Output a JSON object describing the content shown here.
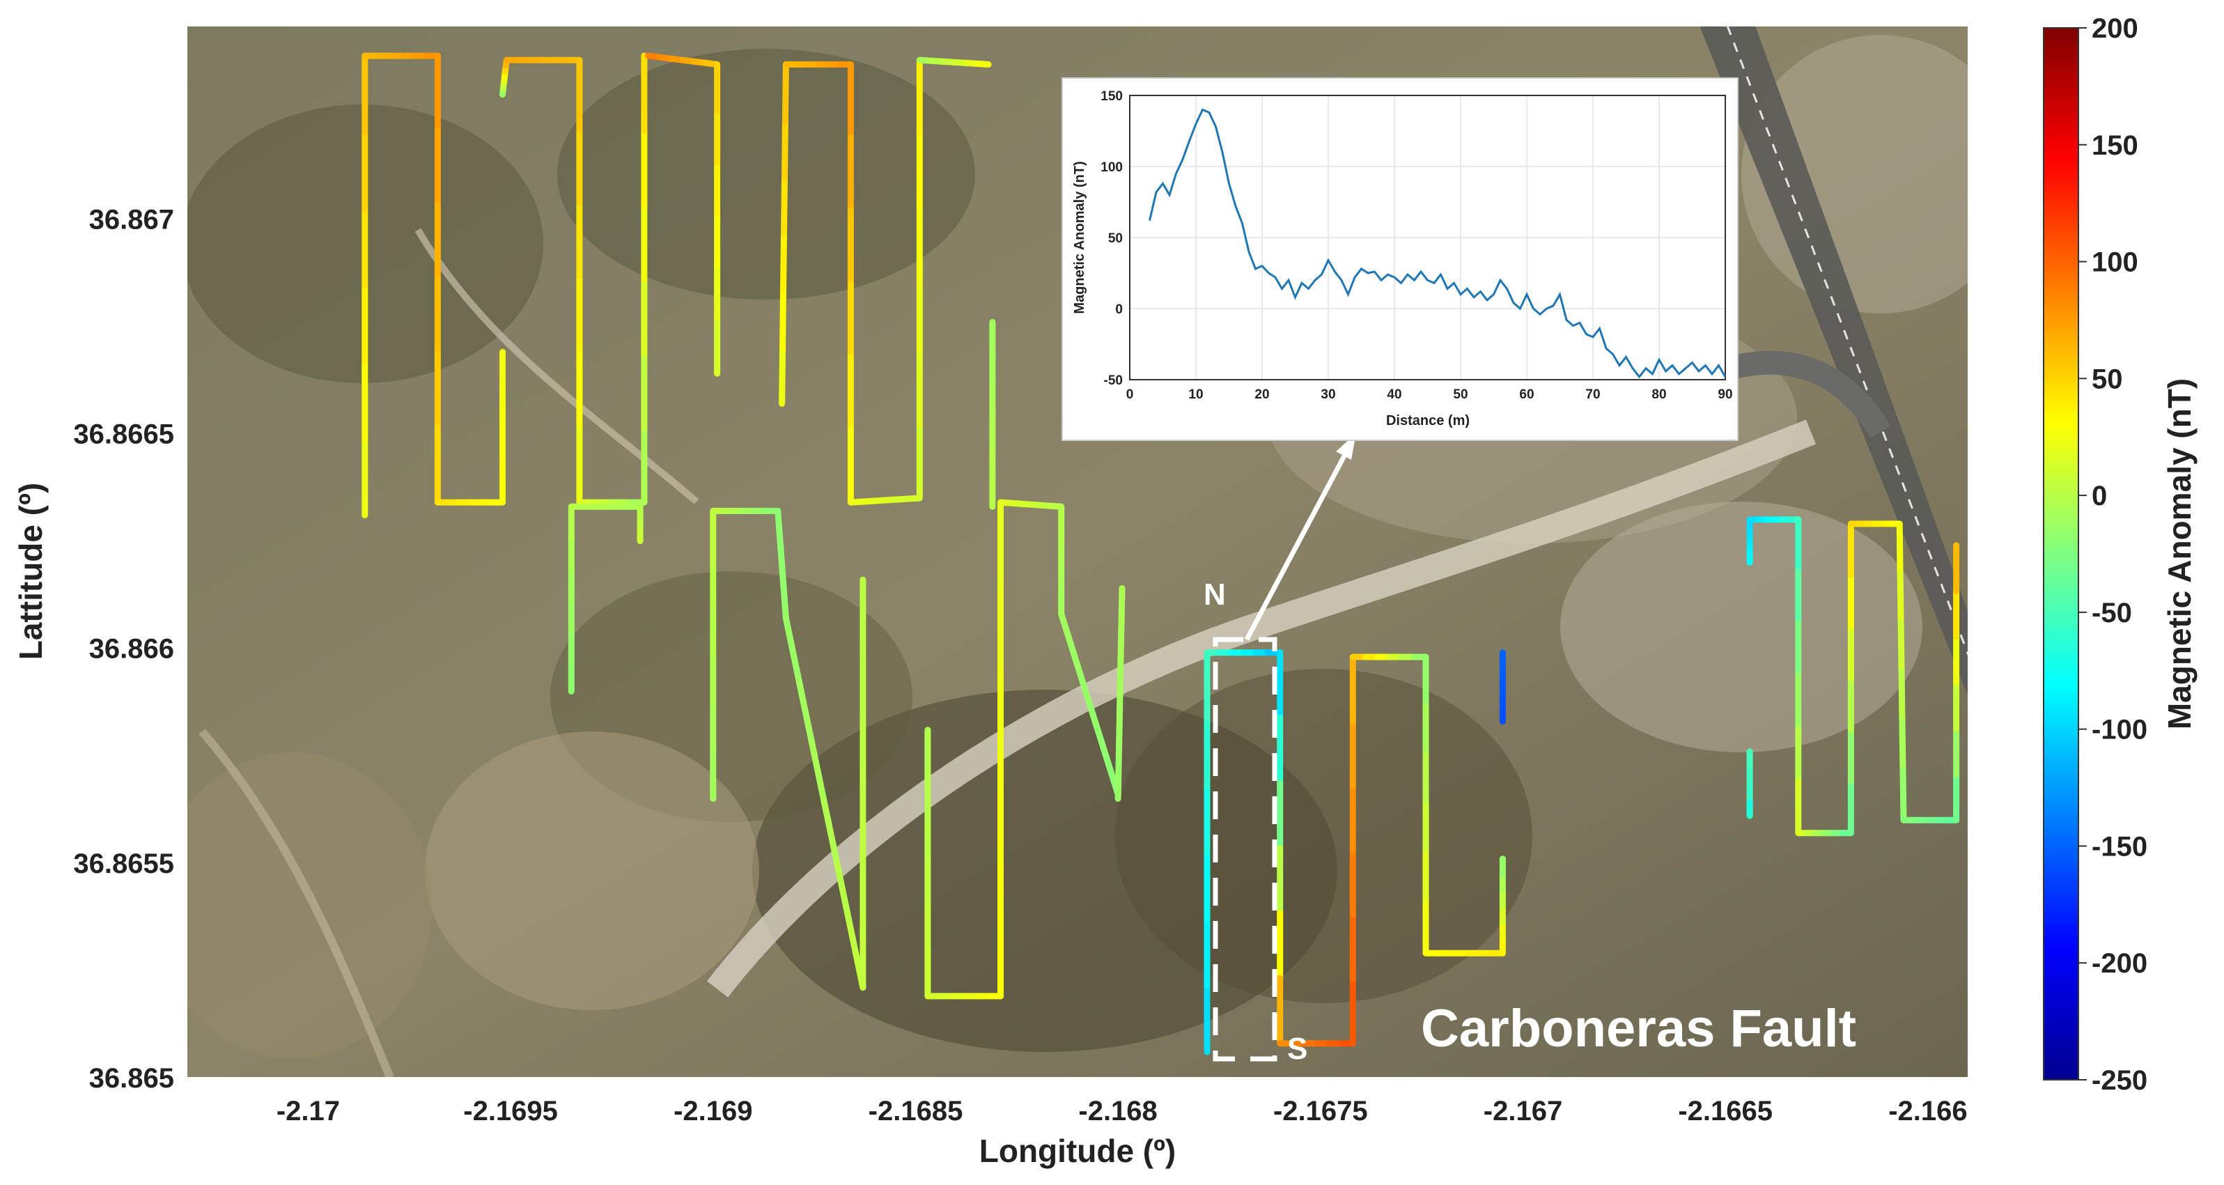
{
  "chart_data": [
    {
      "type": "scatter",
      "title": "",
      "xlabel": "Longitude (º)",
      "ylabel": "Lattitude (º)",
      "xlim": [
        -2.1703,
        -2.1659
      ],
      "ylim": [
        36.865,
        36.86745
      ],
      "x_ticks": [
        "-2.17",
        "-2.1695",
        "-2.169",
        "-2.1685",
        "-2.168",
        "-2.1675",
        "-2.167",
        "-2.1665",
        "-2.166"
      ],
      "y_ticks": [
        "36.865",
        "36.8655",
        "36.866",
        "36.8665",
        "36.867"
      ],
      "colorbar": {
        "label": "Magnetic Anomaly (nT)",
        "range": [
          -250,
          200
        ],
        "ticks": [
          "200",
          "150",
          "100",
          "50",
          "0",
          "-50",
          "-100",
          "-150",
          "-200",
          "-250"
        ],
        "colormap": "jet"
      },
      "background": "satellite image",
      "annotations": {
        "site_label": "Carboneras Fault",
        "profile_start": "N",
        "profile_end": "S"
      },
      "survey_lines": [
        {
          "name": "L1",
          "points": [
            [
              -2.16986,
              36.86631,
              20
            ],
            [
              -2.16986,
              36.86738,
              60
            ],
            [
              -2.16968,
              36.86738,
              80
            ],
            [
              -2.16968,
              36.86634,
              45
            ],
            [
              -2.16952,
              36.86634,
              30
            ],
            [
              -2.16952,
              36.86669,
              25
            ]
          ]
        },
        {
          "name": "L2",
          "points": [
            [
              -2.16952,
              36.86729,
              -20
            ],
            [
              -2.16951,
              36.86737,
              70
            ],
            [
              -2.16933,
              36.86737,
              60
            ],
            [
              -2.16933,
              36.86634,
              20
            ],
            [
              -2.16917,
              36.86634,
              -10
            ],
            [
              -2.16917,
              36.86738,
              50
            ]
          ]
        },
        {
          "name": "L3",
          "points": [
            [
              -2.16916,
              36.86738,
              90
            ],
            [
              -2.16899,
              36.86736,
              55
            ],
            [
              -2.16899,
              36.86664,
              10
            ]
          ]
        },
        {
          "name": "L4",
          "points": [
            [
              -2.16883,
              36.86657,
              20
            ],
            [
              -2.16882,
              36.86736,
              60
            ],
            [
              -2.16866,
              36.86736,
              80
            ],
            [
              -2.16866,
              36.86634,
              25
            ],
            [
              -2.16849,
              36.86635,
              10
            ],
            [
              -2.16849,
              36.86737,
              40
            ]
          ]
        },
        {
          "name": "L5",
          "points": [
            [
              -2.16849,
              36.86737,
              -10
            ],
            [
              -2.16832,
              36.86736,
              30
            ]
          ]
        },
        {
          "name": "L6",
          "points": [
            [
              -2.16935,
              36.8659,
              -20
            ],
            [
              -2.16935,
              36.86633,
              0
            ],
            [
              -2.16918,
              36.86633,
              -5
            ],
            [
              -2.16918,
              36.86625,
              10
            ]
          ]
        },
        {
          "name": "L7",
          "points": [
            [
              -2.169,
              36.86565,
              -10
            ],
            [
              -2.169,
              36.86632,
              5
            ],
            [
              -2.16884,
              36.86632,
              -20
            ],
            [
              -2.16882,
              36.86607,
              -15
            ],
            [
              -2.16863,
              36.86521,
              5
            ],
            [
              -2.16863,
              36.86616,
              0
            ]
          ]
        },
        {
          "name": "L8",
          "points": [
            [
              -2.16847,
              36.86581,
              -5
            ],
            [
              -2.16847,
              36.86519,
              10
            ],
            [
              -2.16829,
              36.86519,
              30
            ],
            [
              -2.16829,
              36.86634,
              20
            ],
            [
              -2.16814,
              36.86633,
              0
            ],
            [
              -2.16814,
              36.86608,
              -10
            ],
            [
              -2.168,
              36.86566,
              -20
            ]
          ]
        },
        {
          "name": "L9",
          "points": [
            [
              -2.16831,
              36.86676,
              -10
            ],
            [
              -2.16831,
              36.86633,
              0
            ]
          ]
        },
        {
          "name": "L10",
          "points": [
            [
              -2.168,
              36.86565,
              -15
            ],
            [
              -2.16799,
              36.86614,
              -5
            ]
          ]
        },
        {
          "name": "L11",
          "points": [
            [
              -2.16778,
              36.86506,
              -100
            ],
            [
              -2.16778,
              36.86599,
              -50
            ],
            [
              -2.1676,
              36.86599,
              -110
            ],
            [
              -2.1676,
              36.86508,
              80
            ],
            [
              -2.16742,
              36.86508,
              110
            ],
            [
              -2.16742,
              36.86598,
              60
            ],
            [
              -2.16724,
              36.86598,
              -20
            ],
            [
              -2.16724,
              36.86529,
              30
            ],
            [
              -2.16705,
              36.86529,
              40
            ],
            [
              -2.16705,
              36.86551,
              -20
            ]
          ]
        },
        {
          "name": "L12",
          "points": [
            [
              -2.16705,
              36.86599,
              -150
            ],
            [
              -2.16705,
              36.86583,
              -160
            ]
          ]
        },
        {
          "name": "L13",
          "points": [
            [
              -2.16644,
              36.86576,
              -50
            ],
            [
              -2.16644,
              36.86561,
              -60
            ],
            [
              -2.16644,
              36.86564,
              -70
            ]
          ]
        },
        {
          "name": "L14",
          "points": [
            [
              -2.16644,
              36.8662,
              -80
            ],
            [
              -2.16644,
              36.8663,
              -100
            ],
            [
              -2.16632,
              36.8663,
              -60
            ],
            [
              -2.16632,
              36.86557,
              20
            ],
            [
              -2.16619,
              36.86557,
              -40
            ],
            [
              -2.16619,
              36.86629,
              50
            ],
            [
              -2.16607,
              36.86629,
              30
            ],
            [
              -2.16606,
              36.8656,
              -20
            ],
            [
              -2.16593,
              36.8656,
              -40
            ],
            [
              -2.16593,
              36.86624,
              70
            ]
          ]
        }
      ]
    },
    {
      "type": "line",
      "title": "",
      "xlabel": "Distance (m)",
      "ylabel": "Magnetic Anomaly (nT)",
      "xlim": [
        0,
        90
      ],
      "ylim": [
        -50,
        150
      ],
      "x_ticks": [
        "0",
        "10",
        "20",
        "30",
        "40",
        "50",
        "60",
        "70",
        "80",
        "90"
      ],
      "y_ticks": [
        "150",
        "100",
        "50",
        "0",
        "-50"
      ],
      "grid": true,
      "series": [
        {
          "color": "#1f77b4",
          "x": [
            3,
            4,
            5,
            6,
            7,
            8,
            9,
            10,
            11,
            12,
            13,
            14,
            15,
            16,
            17,
            18,
            19,
            20,
            21,
            22,
            23,
            24,
            25,
            26,
            27,
            28,
            29,
            30,
            31,
            32,
            33,
            34,
            35,
            36,
            37,
            38,
            39,
            40,
            41,
            42,
            43,
            44,
            45,
            46,
            47,
            48,
            49,
            50,
            51,
            52,
            53,
            54,
            55,
            56,
            57,
            58,
            59,
            60,
            61,
            62,
            63,
            64,
            65,
            66,
            67,
            68,
            69,
            70,
            71,
            72,
            73,
            74,
            75,
            76,
            77,
            78,
            79,
            80,
            81,
            82,
            83,
            84,
            85,
            86,
            87,
            88,
            89,
            90
          ],
          "y": [
            62,
            82,
            88,
            80,
            95,
            105,
            118,
            130,
            140,
            138,
            128,
            110,
            88,
            72,
            60,
            40,
            28,
            30,
            25,
            22,
            14,
            20,
            8,
            18,
            14,
            20,
            24,
            34,
            26,
            20,
            10,
            22,
            28,
            25,
            26,
            20,
            24,
            22,
            18,
            24,
            20,
            26,
            20,
            18,
            24,
            14,
            18,
            10,
            14,
            8,
            12,
            6,
            10,
            20,
            14,
            4,
            0,
            10,
            0,
            -4,
            0,
            2,
            10,
            -8,
            -12,
            -10,
            -18,
            -20,
            -14,
            -28,
            -32,
            -40,
            -34,
            -42,
            -48,
            -42,
            -46,
            -36,
            -44,
            -40,
            -46,
            -42,
            -38,
            -44,
            -40,
            -46,
            -40,
            -48
          ]
        }
      ]
    }
  ]
}
